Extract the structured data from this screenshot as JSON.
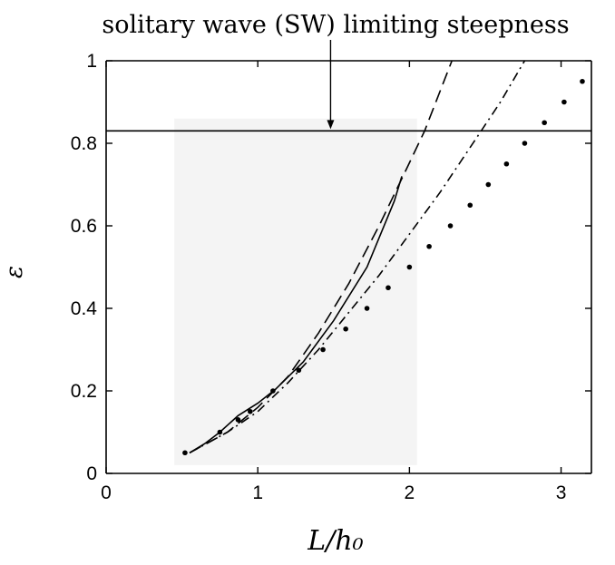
{
  "chart_data": {
    "type": "line",
    "title": "",
    "xlabel": "L/h₀",
    "ylabel": "ε",
    "xlim": [
      0,
      3.2
    ],
    "ylim": [
      0,
      1
    ],
    "xticks": [
      0,
      1,
      2,
      3
    ],
    "yticks": [
      0,
      0.2,
      0.4,
      0.6,
      0.8,
      1
    ],
    "xtick_labels": [
      "0",
      "1",
      "2",
      "3"
    ],
    "ytick_labels": [
      "0",
      "0.2",
      "0.4",
      "0.6",
      "0.8",
      "1"
    ],
    "grid": false,
    "annotation": {
      "text": "solitary wave (SW) limiting steepness",
      "arrow_x": 1.48,
      "y": 0.83
    },
    "series": [
      {
        "style": "solid",
        "x": [
          0.55,
          0.65,
          0.75,
          0.87,
          1.0,
          1.12,
          1.3,
          1.5,
          1.72,
          1.9,
          1.95
        ],
        "y": [
          0.05,
          0.072,
          0.1,
          0.14,
          0.17,
          0.205,
          0.27,
          0.37,
          0.5,
          0.66,
          0.72
        ]
      },
      {
        "style": "dashed",
        "x": [
          0.55,
          0.8,
          1.0,
          1.2,
          1.4,
          1.6,
          1.8,
          1.97,
          2.1,
          2.28
        ],
        "y": [
          0.05,
          0.1,
          0.16,
          0.235,
          0.34,
          0.46,
          0.6,
          0.73,
          0.83,
          1.0
        ]
      },
      {
        "style": "dashdot",
        "x": [
          0.55,
          0.8,
          1.0,
          1.2,
          1.4,
          1.6,
          1.8,
          2.0,
          2.2,
          2.4,
          2.6,
          2.76
        ],
        "y": [
          0.05,
          0.1,
          0.15,
          0.22,
          0.3,
          0.39,
          0.48,
          0.58,
          0.68,
          0.79,
          0.9,
          1.0
        ]
      },
      {
        "style": "dots",
        "x": [
          0.52,
          0.75,
          0.87,
          0.95,
          1.1,
          1.27,
          1.43,
          1.58,
          1.72,
          1.86,
          2.0,
          2.13,
          2.27,
          2.4,
          2.52,
          2.64,
          2.76,
          2.89,
          3.02,
          3.14
        ],
        "y": [
          0.05,
          0.1,
          0.13,
          0.15,
          0.2,
          0.25,
          0.3,
          0.35,
          0.4,
          0.45,
          0.5,
          0.55,
          0.6,
          0.65,
          0.7,
          0.75,
          0.8,
          0.85,
          0.9,
          0.95
        ]
      }
    ]
  }
}
